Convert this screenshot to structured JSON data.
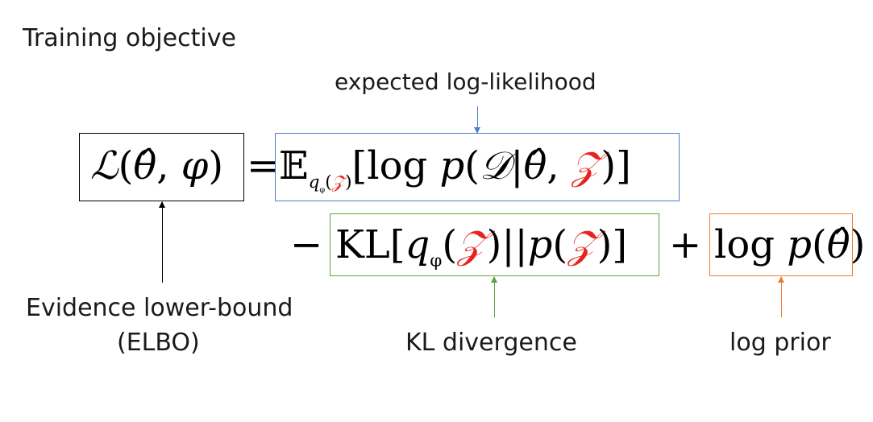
{
  "title": "Training objective",
  "annotations": {
    "expected_loglik": "expected log-likelihood",
    "elbo_line1": "Evidence lower-bound",
    "elbo_line2": "(ELBO)",
    "kl": "KL divergence",
    "log_prior": "log prior"
  },
  "colors": {
    "elbo_box": "#000000",
    "expected_box": "#4a7fd0",
    "kl_box": "#5aa33c",
    "prior_box": "#ee7d31",
    "latent_symbol": "#e8231e"
  }
}
